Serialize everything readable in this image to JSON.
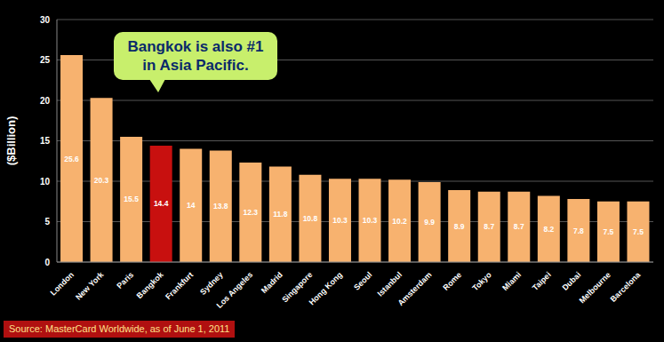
{
  "chart_data": {
    "type": "bar",
    "y_label": "($Billion)",
    "categories": [
      "London",
      "New York",
      "Paris",
      "Bangkok",
      "Frankfurt",
      "Sydney",
      "Los Angeles",
      "Madrid",
      "Singapore",
      "Hong Kong",
      "Seoul",
      "Istanbul",
      "Amsterdam",
      "Rome",
      "Tokyo",
      "Miami",
      "Taipei",
      "Dubai",
      "Melbourne",
      "Barcelona"
    ],
    "values": [
      25.6,
      20.3,
      15.5,
      14.4,
      14,
      13.8,
      12.3,
      11.8,
      10.8,
      10.3,
      10.3,
      10.2,
      9.9,
      8.9,
      8.7,
      8.7,
      8.2,
      7.8,
      7.5,
      7.5
    ],
    "colors": [
      "#f7b26f",
      "#f7b26f",
      "#f7b26f",
      "#c8100f",
      "#f7b26f",
      "#f7b26f",
      "#f7b26f",
      "#f7b26f",
      "#f7b26f",
      "#f7b26f",
      "#f7b26f",
      "#f7b26f",
      "#f7b26f",
      "#f7b26f",
      "#f7b26f",
      "#f7b26f",
      "#f7b26f",
      "#f7b26f",
      "#f7b26f",
      "#f7b26f"
    ],
    "ylim": [
      0,
      30
    ],
    "yticks": [
      0,
      5,
      10,
      15,
      20,
      25,
      30
    ],
    "grid": true,
    "data_labels": true,
    "annotation": "Bangkok is also #1 in Asia Pacific.",
    "source": "Source: MasterCard Worldwide, as of June 1, 2011"
  }
}
